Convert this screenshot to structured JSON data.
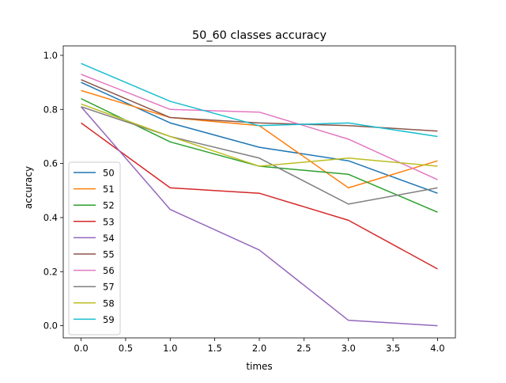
{
  "chart_data": {
    "type": "line",
    "title": "50_60 classes accuracy",
    "xlabel": "times",
    "ylabel": "accuracy",
    "xlim": [
      -0.2,
      4.2
    ],
    "ylim": [
      -0.045,
      1.035
    ],
    "xticks": [
      "0.0",
      "0.5",
      "1.0",
      "1.5",
      "2.0",
      "2.5",
      "3.0",
      "3.5",
      "4.0"
    ],
    "yticks": [
      "0.0",
      "0.2",
      "0.4",
      "0.6",
      "0.8",
      "1.0"
    ],
    "grid": false,
    "legend_position": "lower left",
    "x": [
      0,
      1,
      2,
      3,
      4
    ],
    "series": [
      {
        "name": "50",
        "color": "#1f77b4",
        "values": [
          0.9,
          0.75,
          0.66,
          0.61,
          0.49
        ]
      },
      {
        "name": "51",
        "color": "#ff7f0e",
        "values": [
          0.87,
          0.77,
          0.74,
          0.51,
          0.61
        ]
      },
      {
        "name": "52",
        "color": "#2ca02c",
        "values": [
          0.84,
          0.68,
          0.59,
          0.56,
          0.42
        ]
      },
      {
        "name": "53",
        "color": "#d62728",
        "values": [
          0.75,
          0.51,
          0.49,
          0.39,
          0.21
        ]
      },
      {
        "name": "54",
        "color": "#9467bd",
        "values": [
          0.81,
          0.43,
          0.28,
          0.02,
          0.0
        ]
      },
      {
        "name": "55",
        "color": "#8c564b",
        "values": [
          0.91,
          0.77,
          0.75,
          0.74,
          0.72
        ]
      },
      {
        "name": "56",
        "color": "#e377c2",
        "values": [
          0.93,
          0.8,
          0.79,
          0.69,
          0.54
        ]
      },
      {
        "name": "57",
        "color": "#7f7f7f",
        "values": [
          0.81,
          0.7,
          0.62,
          0.45,
          0.51
        ]
      },
      {
        "name": "58",
        "color": "#bcbd22",
        "values": [
          0.82,
          0.7,
          0.59,
          0.62,
          0.59
        ]
      },
      {
        "name": "59",
        "color": "#17becf",
        "values": [
          0.97,
          0.83,
          0.74,
          0.75,
          0.7
        ]
      }
    ]
  }
}
